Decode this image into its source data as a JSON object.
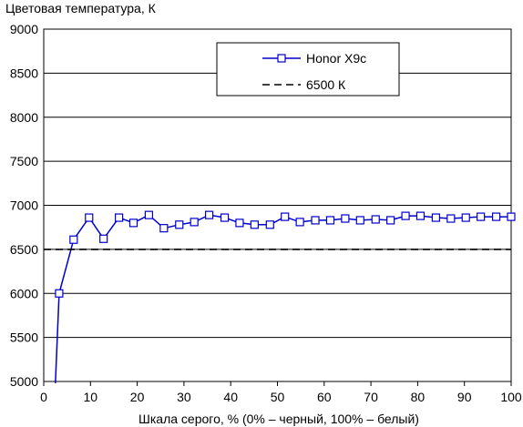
{
  "chart_data": {
    "type": "line",
    "title": "Цветовая температура, К",
    "xlabel": "Шкала серого, % (0% – черный, 100% – белый)",
    "ylabel": "",
    "xlim": [
      0,
      100
    ],
    "ylim": [
      5000,
      9000
    ],
    "xticks": [
      "0",
      "10",
      "20",
      "30",
      "40",
      "50",
      "60",
      "70",
      "80",
      "90",
      "100"
    ],
    "yticks": [
      "5000",
      "5500",
      "6000",
      "6500",
      "7000",
      "7500",
      "8000",
      "8500",
      "9000"
    ],
    "grid": "horizontal",
    "legend_position": "top-right",
    "series": [
      {
        "name": "Honor X9c",
        "color": "#0000cc",
        "marker": "open-square",
        "points": [
          [
            2.5,
            4980
          ],
          [
            3.3,
            6000
          ],
          [
            6.4,
            6610
          ],
          [
            9.7,
            6860
          ],
          [
            12.8,
            6620
          ],
          [
            16.1,
            6860
          ],
          [
            19.2,
            6800
          ],
          [
            22.5,
            6890
          ],
          [
            25.7,
            6740
          ],
          [
            29,
            6780
          ],
          [
            32.2,
            6810
          ],
          [
            35.4,
            6890
          ],
          [
            38.7,
            6860
          ],
          [
            41.9,
            6800
          ],
          [
            45.1,
            6780
          ],
          [
            48.4,
            6780
          ],
          [
            51.6,
            6870
          ],
          [
            54.8,
            6810
          ],
          [
            58.1,
            6830
          ],
          [
            61.3,
            6830
          ],
          [
            64.5,
            6850
          ],
          [
            67.7,
            6830
          ],
          [
            71,
            6840
          ],
          [
            74.2,
            6830
          ],
          [
            77.4,
            6880
          ],
          [
            80.6,
            6880
          ],
          [
            83.9,
            6860
          ],
          [
            87.1,
            6850
          ],
          [
            90.3,
            6860
          ],
          [
            93.5,
            6870
          ],
          [
            96.8,
            6870
          ],
          [
            100,
            6870
          ]
        ]
      },
      {
        "name": "6500 К",
        "color": "#000000",
        "style": "dashed",
        "points": [
          [
            0,
            6500
          ],
          [
            100,
            6500
          ]
        ]
      }
    ]
  }
}
